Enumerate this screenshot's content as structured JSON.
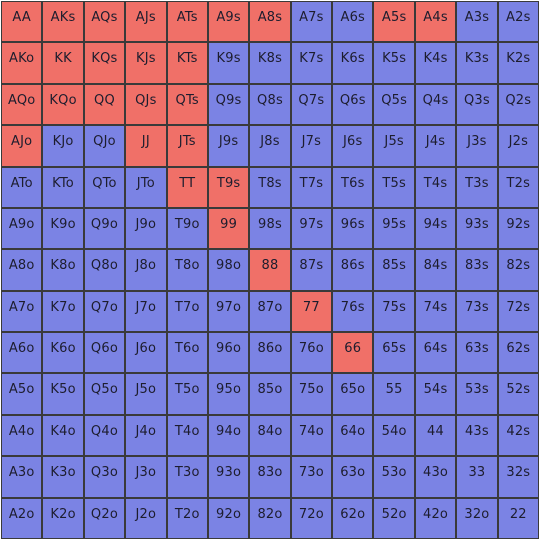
{
  "colors": {
    "raise": "#f07068",
    "fold": "#7b83e4",
    "grid_line": "#3a3a3a"
  },
  "range": {
    "rows": [
      [
        {
          "hand": "AA",
          "action": "raise"
        },
        {
          "hand": "AKs",
          "action": "raise"
        },
        {
          "hand": "AQs",
          "action": "raise"
        },
        {
          "hand": "AJs",
          "action": "raise"
        },
        {
          "hand": "ATs",
          "action": "raise"
        },
        {
          "hand": "A9s",
          "action": "raise"
        },
        {
          "hand": "A8s",
          "action": "raise"
        },
        {
          "hand": "A7s",
          "action": "fold"
        },
        {
          "hand": "A6s",
          "action": "fold"
        },
        {
          "hand": "A5s",
          "action": "raise"
        },
        {
          "hand": "A4s",
          "action": "raise"
        },
        {
          "hand": "A3s",
          "action": "fold"
        },
        {
          "hand": "A2s",
          "action": "fold"
        }
      ],
      [
        {
          "hand": "AKo",
          "action": "raise"
        },
        {
          "hand": "KK",
          "action": "raise"
        },
        {
          "hand": "KQs",
          "action": "raise"
        },
        {
          "hand": "KJs",
          "action": "raise"
        },
        {
          "hand": "KTs",
          "action": "raise"
        },
        {
          "hand": "K9s",
          "action": "fold"
        },
        {
          "hand": "K8s",
          "action": "fold"
        },
        {
          "hand": "K7s",
          "action": "fold"
        },
        {
          "hand": "K6s",
          "action": "fold"
        },
        {
          "hand": "K5s",
          "action": "fold"
        },
        {
          "hand": "K4s",
          "action": "fold"
        },
        {
          "hand": "K3s",
          "action": "fold"
        },
        {
          "hand": "K2s",
          "action": "fold"
        }
      ],
      [
        {
          "hand": "AQo",
          "action": "raise"
        },
        {
          "hand": "KQo",
          "action": "raise"
        },
        {
          "hand": "QQ",
          "action": "raise"
        },
        {
          "hand": "QJs",
          "action": "raise"
        },
        {
          "hand": "QTs",
          "action": "raise"
        },
        {
          "hand": "Q9s",
          "action": "fold"
        },
        {
          "hand": "Q8s",
          "action": "fold"
        },
        {
          "hand": "Q7s",
          "action": "fold"
        },
        {
          "hand": "Q6s",
          "action": "fold"
        },
        {
          "hand": "Q5s",
          "action": "fold"
        },
        {
          "hand": "Q4s",
          "action": "fold"
        },
        {
          "hand": "Q3s",
          "action": "fold"
        },
        {
          "hand": "Q2s",
          "action": "fold"
        }
      ],
      [
        {
          "hand": "AJo",
          "action": "raise"
        },
        {
          "hand": "KJo",
          "action": "fold"
        },
        {
          "hand": "QJo",
          "action": "fold"
        },
        {
          "hand": "JJ",
          "action": "raise"
        },
        {
          "hand": "JTs",
          "action": "raise"
        },
        {
          "hand": "J9s",
          "action": "fold"
        },
        {
          "hand": "J8s",
          "action": "fold"
        },
        {
          "hand": "J7s",
          "action": "fold"
        },
        {
          "hand": "J6s",
          "action": "fold"
        },
        {
          "hand": "J5s",
          "action": "fold"
        },
        {
          "hand": "J4s",
          "action": "fold"
        },
        {
          "hand": "J3s",
          "action": "fold"
        },
        {
          "hand": "J2s",
          "action": "fold"
        }
      ],
      [
        {
          "hand": "ATo",
          "action": "fold"
        },
        {
          "hand": "KTo",
          "action": "fold"
        },
        {
          "hand": "QTo",
          "action": "fold"
        },
        {
          "hand": "JTo",
          "action": "fold"
        },
        {
          "hand": "TT",
          "action": "raise"
        },
        {
          "hand": "T9s",
          "action": "raise"
        },
        {
          "hand": "T8s",
          "action": "fold"
        },
        {
          "hand": "T7s",
          "action": "fold"
        },
        {
          "hand": "T6s",
          "action": "fold"
        },
        {
          "hand": "T5s",
          "action": "fold"
        },
        {
          "hand": "T4s",
          "action": "fold"
        },
        {
          "hand": "T3s",
          "action": "fold"
        },
        {
          "hand": "T2s",
          "action": "fold"
        }
      ],
      [
        {
          "hand": "A9o",
          "action": "fold"
        },
        {
          "hand": "K9o",
          "action": "fold"
        },
        {
          "hand": "Q9o",
          "action": "fold"
        },
        {
          "hand": "J9o",
          "action": "fold"
        },
        {
          "hand": "T9o",
          "action": "fold"
        },
        {
          "hand": "99",
          "action": "raise"
        },
        {
          "hand": "98s",
          "action": "fold"
        },
        {
          "hand": "97s",
          "action": "fold"
        },
        {
          "hand": "96s",
          "action": "fold"
        },
        {
          "hand": "95s",
          "action": "fold"
        },
        {
          "hand": "94s",
          "action": "fold"
        },
        {
          "hand": "93s",
          "action": "fold"
        },
        {
          "hand": "92s",
          "action": "fold"
        }
      ],
      [
        {
          "hand": "A8o",
          "action": "fold"
        },
        {
          "hand": "K8o",
          "action": "fold"
        },
        {
          "hand": "Q8o",
          "action": "fold"
        },
        {
          "hand": "J8o",
          "action": "fold"
        },
        {
          "hand": "T8o",
          "action": "fold"
        },
        {
          "hand": "98o",
          "action": "fold"
        },
        {
          "hand": "88",
          "action": "raise"
        },
        {
          "hand": "87s",
          "action": "fold"
        },
        {
          "hand": "86s",
          "action": "fold"
        },
        {
          "hand": "85s",
          "action": "fold"
        },
        {
          "hand": "84s",
          "action": "fold"
        },
        {
          "hand": "83s",
          "action": "fold"
        },
        {
          "hand": "82s",
          "action": "fold"
        }
      ],
      [
        {
          "hand": "A7o",
          "action": "fold"
        },
        {
          "hand": "K7o",
          "action": "fold"
        },
        {
          "hand": "Q7o",
          "action": "fold"
        },
        {
          "hand": "J7o",
          "action": "fold"
        },
        {
          "hand": "T7o",
          "action": "fold"
        },
        {
          "hand": "97o",
          "action": "fold"
        },
        {
          "hand": "87o",
          "action": "fold"
        },
        {
          "hand": "77",
          "action": "raise"
        },
        {
          "hand": "76s",
          "action": "fold"
        },
        {
          "hand": "75s",
          "action": "fold"
        },
        {
          "hand": "74s",
          "action": "fold"
        },
        {
          "hand": "73s",
          "action": "fold"
        },
        {
          "hand": "72s",
          "action": "fold"
        }
      ],
      [
        {
          "hand": "A6o",
          "action": "fold"
        },
        {
          "hand": "K6o",
          "action": "fold"
        },
        {
          "hand": "Q6o",
          "action": "fold"
        },
        {
          "hand": "J6o",
          "action": "fold"
        },
        {
          "hand": "T6o",
          "action": "fold"
        },
        {
          "hand": "96o",
          "action": "fold"
        },
        {
          "hand": "86o",
          "action": "fold"
        },
        {
          "hand": "76o",
          "action": "fold"
        },
        {
          "hand": "66",
          "action": "raise"
        },
        {
          "hand": "65s",
          "action": "fold"
        },
        {
          "hand": "64s",
          "action": "fold"
        },
        {
          "hand": "63s",
          "action": "fold"
        },
        {
          "hand": "62s",
          "action": "fold"
        }
      ],
      [
        {
          "hand": "A5o",
          "action": "fold"
        },
        {
          "hand": "K5o",
          "action": "fold"
        },
        {
          "hand": "Q5o",
          "action": "fold"
        },
        {
          "hand": "J5o",
          "action": "fold"
        },
        {
          "hand": "T5o",
          "action": "fold"
        },
        {
          "hand": "95o",
          "action": "fold"
        },
        {
          "hand": "85o",
          "action": "fold"
        },
        {
          "hand": "75o",
          "action": "fold"
        },
        {
          "hand": "65o",
          "action": "fold"
        },
        {
          "hand": "55",
          "action": "fold"
        },
        {
          "hand": "54s",
          "action": "fold"
        },
        {
          "hand": "53s",
          "action": "fold"
        },
        {
          "hand": "52s",
          "action": "fold"
        }
      ],
      [
        {
          "hand": "A4o",
          "action": "fold"
        },
        {
          "hand": "K4o",
          "action": "fold"
        },
        {
          "hand": "Q4o",
          "action": "fold"
        },
        {
          "hand": "J4o",
          "action": "fold"
        },
        {
          "hand": "T4o",
          "action": "fold"
        },
        {
          "hand": "94o",
          "action": "fold"
        },
        {
          "hand": "84o",
          "action": "fold"
        },
        {
          "hand": "74o",
          "action": "fold"
        },
        {
          "hand": "64o",
          "action": "fold"
        },
        {
          "hand": "54o",
          "action": "fold"
        },
        {
          "hand": "44",
          "action": "fold"
        },
        {
          "hand": "43s",
          "action": "fold"
        },
        {
          "hand": "42s",
          "action": "fold"
        }
      ],
      [
        {
          "hand": "A3o",
          "action": "fold"
        },
        {
          "hand": "K3o",
          "action": "fold"
        },
        {
          "hand": "Q3o",
          "action": "fold"
        },
        {
          "hand": "J3o",
          "action": "fold"
        },
        {
          "hand": "T3o",
          "action": "fold"
        },
        {
          "hand": "93o",
          "action": "fold"
        },
        {
          "hand": "83o",
          "action": "fold"
        },
        {
          "hand": "73o",
          "action": "fold"
        },
        {
          "hand": "63o",
          "action": "fold"
        },
        {
          "hand": "53o",
          "action": "fold"
        },
        {
          "hand": "43o",
          "action": "fold"
        },
        {
          "hand": "33",
          "action": "fold"
        },
        {
          "hand": "32s",
          "action": "fold"
        }
      ],
      [
        {
          "hand": "A2o",
          "action": "fold"
        },
        {
          "hand": "K2o",
          "action": "fold"
        },
        {
          "hand": "Q2o",
          "action": "fold"
        },
        {
          "hand": "J2o",
          "action": "fold"
        },
        {
          "hand": "T2o",
          "action": "fold"
        },
        {
          "hand": "92o",
          "action": "fold"
        },
        {
          "hand": "82o",
          "action": "fold"
        },
        {
          "hand": "72o",
          "action": "fold"
        },
        {
          "hand": "62o",
          "action": "fold"
        },
        {
          "hand": "52o",
          "action": "fold"
        },
        {
          "hand": "42o",
          "action": "fold"
        },
        {
          "hand": "32o",
          "action": "fold"
        },
        {
          "hand": "22",
          "action": "fold"
        }
      ]
    ]
  }
}
